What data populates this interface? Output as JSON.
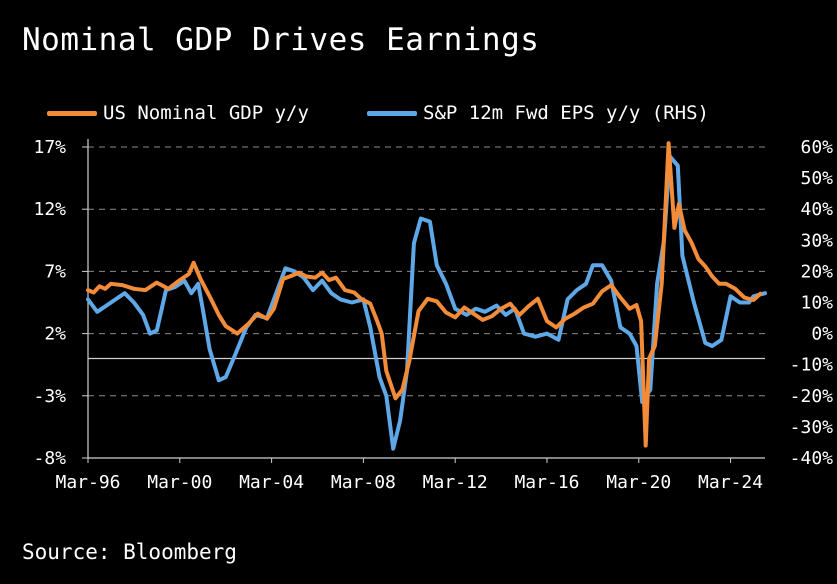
{
  "title": "Nominal GDP Drives Earnings",
  "source": "Source: Bloomberg",
  "chart_data": {
    "type": "line",
    "title": "Nominal GDP Drives Earnings",
    "x_start": 1996.0,
    "x_end": 2025.5,
    "x_tick_labels": [
      {
        "label": "Mar-96",
        "x": 1996.0
      },
      {
        "label": "Mar-00",
        "x": 2000.0
      },
      {
        "label": "Mar-04",
        "x": 2004.0
      },
      {
        "label": "Mar-08",
        "x": 2008.0
      },
      {
        "label": "Mar-12",
        "x": 2012.0
      },
      {
        "label": "Mar-16",
        "x": 2016.0
      },
      {
        "label": "Mar-20",
        "x": 2020.0
      },
      {
        "label": "Mar-24",
        "x": 2024.0
      }
    ],
    "left_axis": {
      "min": -8,
      "max": 17,
      "ticks": [
        17,
        12,
        7,
        2,
        -3,
        -8
      ],
      "tick_labels": [
        "17%",
        "12%",
        "7%",
        "2%",
        "-3%",
        "-8%"
      ],
      "zero_line": 0
    },
    "right_axis": {
      "min": -40,
      "max": 60,
      "ticks": [
        60,
        50,
        40,
        30,
        20,
        10,
        0,
        -10,
        -20,
        -30,
        -40
      ],
      "tick_labels": [
        "60%",
        "50%",
        "40%",
        "30%",
        "20%",
        "10%",
        "0%",
        "-10%",
        "-20%",
        "-30%",
        "-40%"
      ]
    },
    "gridlines": "dashed horizontal at left-axis ticks",
    "series": [
      {
        "name": "US Nominal GDP y/y",
        "axis": "left",
        "color": "#F28C38",
        "points": [
          [
            1996.0,
            5.5
          ],
          [
            1996.25,
            5.3
          ],
          [
            1996.5,
            5.8
          ],
          [
            1996.75,
            5.6
          ],
          [
            1997.0,
            6.0
          ],
          [
            1997.5,
            5.9
          ],
          [
            1998.0,
            5.6
          ],
          [
            1998.5,
            5.5
          ],
          [
            1999.0,
            6.1
          ],
          [
            1999.5,
            5.6
          ],
          [
            2000.0,
            6.3
          ],
          [
            2000.4,
            6.8
          ],
          [
            2000.6,
            7.7
          ],
          [
            2000.9,
            6.4
          ],
          [
            2001.3,
            5.0
          ],
          [
            2001.7,
            3.5
          ],
          [
            2002.0,
            2.6
          ],
          [
            2002.5,
            2.0
          ],
          [
            2003.0,
            2.8
          ],
          [
            2003.4,
            3.6
          ],
          [
            2003.8,
            3.2
          ],
          [
            2004.1,
            4.0
          ],
          [
            2004.5,
            6.4
          ],
          [
            2004.8,
            6.6
          ],
          [
            2005.2,
            6.9
          ],
          [
            2005.5,
            6.6
          ],
          [
            2005.9,
            6.5
          ],
          [
            2006.2,
            6.9
          ],
          [
            2006.5,
            6.3
          ],
          [
            2006.8,
            6.5
          ],
          [
            2007.2,
            5.5
          ],
          [
            2007.6,
            5.3
          ],
          [
            2007.9,
            4.8
          ],
          [
            2008.3,
            4.4
          ],
          [
            2008.6,
            3.0
          ],
          [
            2008.8,
            2.0
          ],
          [
            2009.0,
            -1.0
          ],
          [
            2009.4,
            -3.2
          ],
          [
            2009.7,
            -2.5
          ],
          [
            2010.0,
            -0.2
          ],
          [
            2010.4,
            3.8
          ],
          [
            2010.8,
            4.8
          ],
          [
            2011.2,
            4.6
          ],
          [
            2011.6,
            3.7
          ],
          [
            2012.0,
            3.3
          ],
          [
            2012.4,
            4.1
          ],
          [
            2012.8,
            3.6
          ],
          [
            2013.2,
            3.1
          ],
          [
            2013.6,
            3.4
          ],
          [
            2014.0,
            4.0
          ],
          [
            2014.4,
            4.4
          ],
          [
            2014.8,
            3.5
          ],
          [
            2015.2,
            4.2
          ],
          [
            2015.6,
            4.8
          ],
          [
            2016.0,
            3.0
          ],
          [
            2016.4,
            2.5
          ],
          [
            2016.8,
            3.2
          ],
          [
            2017.2,
            3.6
          ],
          [
            2017.6,
            4.1
          ],
          [
            2018.0,
            4.4
          ],
          [
            2018.4,
            5.4
          ],
          [
            2018.8,
            5.9
          ],
          [
            2019.2,
            4.9
          ],
          [
            2019.6,
            4.0
          ],
          [
            2019.9,
            4.3
          ],
          [
            2020.1,
            3.0
          ],
          [
            2020.3,
            -7.0
          ],
          [
            2020.45,
            0.0
          ],
          [
            2020.7,
            1.0
          ],
          [
            2021.0,
            6.0
          ],
          [
            2021.3,
            17.3
          ],
          [
            2021.55,
            10.5
          ],
          [
            2021.75,
            12.4
          ],
          [
            2022.0,
            10.3
          ],
          [
            2022.3,
            9.3
          ],
          [
            2022.6,
            8.0
          ],
          [
            2022.9,
            7.4
          ],
          [
            2023.2,
            6.6
          ],
          [
            2023.5,
            6.0
          ],
          [
            2023.8,
            6.0
          ],
          [
            2024.2,
            5.6
          ],
          [
            2024.6,
            4.9
          ],
          [
            2025.0,
            4.7
          ],
          [
            2025.3,
            5.2
          ]
        ]
      },
      {
        "name": "S&P 12m Fwd EPS y/y (RHS)",
        "axis": "right",
        "color": "#5FA8E8",
        "points": [
          [
            1996.0,
            11.0
          ],
          [
            1996.4,
            7.0
          ],
          [
            1996.8,
            9.0
          ],
          [
            1997.2,
            11.0
          ],
          [
            1997.6,
            13.0
          ],
          [
            1998.0,
            10.0
          ],
          [
            1998.4,
            6.0
          ],
          [
            1998.7,
            0.0
          ],
          [
            1999.0,
            1.0
          ],
          [
            1999.4,
            14.0
          ],
          [
            1999.8,
            15.0
          ],
          [
            2000.2,
            17.0
          ],
          [
            2000.5,
            13.0
          ],
          [
            2000.8,
            16.0
          ],
          [
            2001.0,
            8.0
          ],
          [
            2001.3,
            -5.0
          ],
          [
            2001.7,
            -15.0
          ],
          [
            2002.0,
            -14.0
          ],
          [
            2002.4,
            -7.0
          ],
          [
            2002.9,
            2.0
          ],
          [
            2003.3,
            6.0
          ],
          [
            2003.8,
            5.0
          ],
          [
            2004.2,
            13.0
          ],
          [
            2004.6,
            21.0
          ],
          [
            2005.0,
            20.0
          ],
          [
            2005.4,
            18.0
          ],
          [
            2005.8,
            14.0
          ],
          [
            2006.2,
            17.0
          ],
          [
            2006.6,
            13.0
          ],
          [
            2007.0,
            11.0
          ],
          [
            2007.5,
            10.0
          ],
          [
            2008.0,
            11.0
          ],
          [
            2008.3,
            2.0
          ],
          [
            2008.7,
            -14.0
          ],
          [
            2009.0,
            -20.0
          ],
          [
            2009.3,
            -37.0
          ],
          [
            2009.6,
            -28.0
          ],
          [
            2009.9,
            -12.0
          ],
          [
            2010.2,
            29.0
          ],
          [
            2010.5,
            37.0
          ],
          [
            2010.9,
            36.0
          ],
          [
            2011.2,
            22.0
          ],
          [
            2011.6,
            16.0
          ],
          [
            2012.0,
            8.0
          ],
          [
            2012.5,
            6.0
          ],
          [
            2012.9,
            8.0
          ],
          [
            2013.3,
            7.0
          ],
          [
            2013.8,
            9.0
          ],
          [
            2014.2,
            6.0
          ],
          [
            2014.6,
            8.0
          ],
          [
            2015.0,
            0.0
          ],
          [
            2015.5,
            -1.0
          ],
          [
            2016.0,
            0.0
          ],
          [
            2016.5,
            -2.0
          ],
          [
            2016.9,
            11.0
          ],
          [
            2017.3,
            14.0
          ],
          [
            2017.7,
            16.0
          ],
          [
            2018.0,
            22.0
          ],
          [
            2018.4,
            22.0
          ],
          [
            2018.8,
            17.0
          ],
          [
            2019.2,
            2.0
          ],
          [
            2019.6,
            0.0
          ],
          [
            2019.9,
            -4.0
          ],
          [
            2020.15,
            -22.0
          ],
          [
            2020.5,
            -18.0
          ],
          [
            2020.8,
            16.0
          ],
          [
            2021.1,
            30.0
          ],
          [
            2021.35,
            57.0
          ],
          [
            2021.7,
            54.0
          ],
          [
            2021.9,
            25.0
          ],
          [
            2022.4,
            10.0
          ],
          [
            2022.9,
            -3.0
          ],
          [
            2023.2,
            -4.0
          ],
          [
            2023.6,
            -2.0
          ],
          [
            2024.0,
            12.0
          ],
          [
            2024.4,
            10.0
          ],
          [
            2024.8,
            10.0
          ],
          [
            2025.0,
            12.0
          ],
          [
            2025.5,
            13.0
          ]
        ]
      }
    ]
  }
}
